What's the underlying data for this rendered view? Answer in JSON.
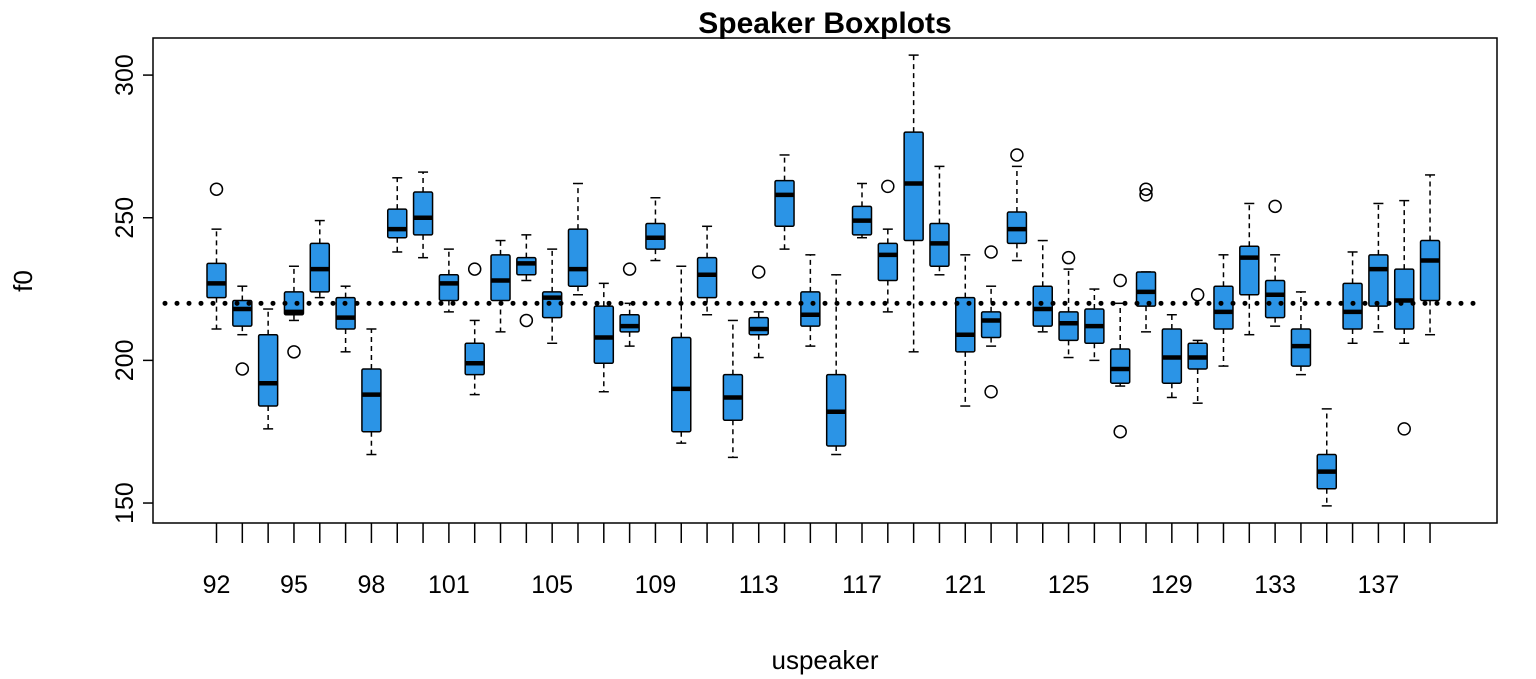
{
  "chart_data": {
    "type": "boxplot",
    "title": "Speaker Boxplots",
    "xlabel": "uspeaker",
    "ylabel": "f0",
    "ylim": [
      143,
      313
    ],
    "yticks": [
      150,
      200,
      250,
      300
    ],
    "x_tick_labels_shown": [
      "92",
      "95",
      "98",
      "101",
      "105",
      "109",
      "113",
      "117",
      "121",
      "125",
      "129",
      "133",
      "137"
    ],
    "reference_line": 220,
    "box_color": "#2b94e6",
    "categories": [
      "92",
      "93",
      "94",
      "95",
      "96",
      "97",
      "98",
      "99",
      "100",
      "101",
      "102",
      "103",
      "104",
      "105",
      "106",
      "107",
      "108",
      "109",
      "110",
      "111",
      "112",
      "113",
      "114",
      "115",
      "116",
      "117",
      "118",
      "119",
      "120",
      "121",
      "122",
      "123",
      "124",
      "125",
      "126",
      "127",
      "128",
      "129",
      "130",
      "131",
      "132",
      "133",
      "134",
      "135",
      "136",
      "137",
      "138",
      "139"
    ],
    "boxes": [
      {
        "label": "92",
        "whislo": 211,
        "q1": 222,
        "med": 227,
        "q3": 234,
        "whishi": 246,
        "fliers": [
          260
        ]
      },
      {
        "label": "93",
        "whislo": 209,
        "q1": 212,
        "med": 218,
        "q3": 221,
        "whishi": 226,
        "fliers": [
          197
        ]
      },
      {
        "label": "94",
        "whislo": 176,
        "q1": 184,
        "med": 192,
        "q3": 209,
        "whishi": 218,
        "fliers": []
      },
      {
        "label": "95",
        "whislo": 214,
        "q1": 216,
        "med": 217,
        "q3": 224,
        "whishi": 233,
        "fliers": [
          203
        ]
      },
      {
        "label": "96",
        "whislo": 222,
        "q1": 224,
        "med": 232,
        "q3": 241,
        "whishi": 249,
        "fliers": []
      },
      {
        "label": "97",
        "whislo": 203,
        "q1": 211,
        "med": 215,
        "q3": 222,
        "whishi": 226,
        "fliers": []
      },
      {
        "label": "98",
        "whislo": 167,
        "q1": 175,
        "med": 188,
        "q3": 197,
        "whishi": 211,
        "fliers": []
      },
      {
        "label": "99",
        "whislo": 238,
        "q1": 243,
        "med": 246,
        "q3": 253,
        "whishi": 264,
        "fliers": []
      },
      {
        "label": "100",
        "whislo": 236,
        "q1": 244,
        "med": 250,
        "q3": 259,
        "whishi": 266,
        "fliers": []
      },
      {
        "label": "101",
        "whislo": 217,
        "q1": 221,
        "med": 227,
        "q3": 230,
        "whishi": 239,
        "fliers": []
      },
      {
        "label": "102",
        "whislo": 188,
        "q1": 195,
        "med": 199,
        "q3": 206,
        "whishi": 214,
        "fliers": [
          232
        ]
      },
      {
        "label": "103",
        "whislo": 210,
        "q1": 221,
        "med": 228,
        "q3": 237,
        "whishi": 242,
        "fliers": []
      },
      {
        "label": "104",
        "whislo": 228,
        "q1": 230,
        "med": 234,
        "q3": 236,
        "whishi": 244,
        "fliers": [
          214
        ]
      },
      {
        "label": "105",
        "whislo": 206,
        "q1": 215,
        "med": 222,
        "q3": 224,
        "whishi": 239,
        "fliers": []
      },
      {
        "label": "106",
        "whislo": 223,
        "q1": 226,
        "med": 232,
        "q3": 246,
        "whishi": 262,
        "fliers": []
      },
      {
        "label": "107",
        "whislo": 189,
        "q1": 199,
        "med": 208,
        "q3": 219,
        "whishi": 227,
        "fliers": []
      },
      {
        "label": "108",
        "whislo": 205,
        "q1": 210,
        "med": 212,
        "q3": 216,
        "whishi": 220,
        "fliers": [
          232
        ]
      },
      {
        "label": "109",
        "whislo": 235,
        "q1": 239,
        "med": 243,
        "q3": 248,
        "whishi": 257,
        "fliers": []
      },
      {
        "label": "110",
        "whislo": 171,
        "q1": 175,
        "med": 190,
        "q3": 208,
        "whishi": 233,
        "fliers": []
      },
      {
        "label": "111",
        "whislo": 216,
        "q1": 222,
        "med": 230,
        "q3": 236,
        "whishi": 247,
        "fliers": []
      },
      {
        "label": "112",
        "whislo": 166,
        "q1": 179,
        "med": 187,
        "q3": 195,
        "whishi": 214,
        "fliers": []
      },
      {
        "label": "113",
        "whislo": 201,
        "q1": 209,
        "med": 211,
        "q3": 215,
        "whishi": 217,
        "fliers": [
          231
        ]
      },
      {
        "label": "114",
        "whislo": 239,
        "q1": 247,
        "med": 258,
        "q3": 263,
        "whishi": 272,
        "fliers": []
      },
      {
        "label": "115",
        "whislo": 205,
        "q1": 212,
        "med": 216,
        "q3": 224,
        "whishi": 237,
        "fliers": []
      },
      {
        "label": "116",
        "whislo": 167,
        "q1": 170,
        "med": 182,
        "q3": 195,
        "whishi": 230,
        "fliers": []
      },
      {
        "label": "117",
        "whislo": 243,
        "q1": 244,
        "med": 249,
        "q3": 254,
        "whishi": 262,
        "fliers": []
      },
      {
        "label": "118",
        "whislo": 217,
        "q1": 228,
        "med": 237,
        "q3": 241,
        "whishi": 246,
        "fliers": [
          261
        ]
      },
      {
        "label": "119",
        "whislo": 203,
        "q1": 242,
        "med": 262,
        "q3": 280,
        "whishi": 307,
        "fliers": []
      },
      {
        "label": "120",
        "whislo": 230,
        "q1": 233,
        "med": 241,
        "q3": 248,
        "whishi": 268,
        "fliers": []
      },
      {
        "label": "121",
        "whislo": 184,
        "q1": 203,
        "med": 209,
        "q3": 222,
        "whishi": 237,
        "fliers": []
      },
      {
        "label": "122",
        "whislo": 205,
        "q1": 208,
        "med": 214,
        "q3": 217,
        "whishi": 226,
        "fliers": [
          189,
          238
        ]
      },
      {
        "label": "123",
        "whislo": 235,
        "q1": 241,
        "med": 246,
        "q3": 252,
        "whishi": 268,
        "fliers": [
          272
        ]
      },
      {
        "label": "124",
        "whislo": 210,
        "q1": 212,
        "med": 218,
        "q3": 226,
        "whishi": 242,
        "fliers": []
      },
      {
        "label": "125",
        "whislo": 201,
        "q1": 207,
        "med": 213,
        "q3": 217,
        "whishi": 232,
        "fliers": [
          236
        ]
      },
      {
        "label": "126",
        "whislo": 200,
        "q1": 206,
        "med": 212,
        "q3": 218,
        "whishi": 225,
        "fliers": []
      },
      {
        "label": "127",
        "whislo": 191,
        "q1": 192,
        "med": 197,
        "q3": 204,
        "whishi": 220,
        "fliers": [
          175,
          228
        ]
      },
      {
        "label": "128",
        "whislo": 210,
        "q1": 219,
        "med": 224,
        "q3": 231,
        "whishi": 231,
        "fliers": [
          258,
          260
        ]
      },
      {
        "label": "129",
        "whislo": 187,
        "q1": 192,
        "med": 201,
        "q3": 211,
        "whishi": 216,
        "fliers": []
      },
      {
        "label": "130",
        "whislo": 185,
        "q1": 197,
        "med": 201,
        "q3": 206,
        "whishi": 207,
        "fliers": [
          223
        ]
      },
      {
        "label": "131",
        "whislo": 198,
        "q1": 211,
        "med": 217,
        "q3": 226,
        "whishi": 237,
        "fliers": []
      },
      {
        "label": "132",
        "whislo": 209,
        "q1": 223,
        "med": 236,
        "q3": 240,
        "whishi": 255,
        "fliers": []
      },
      {
        "label": "133",
        "whislo": 212,
        "q1": 215,
        "med": 223,
        "q3": 228,
        "whishi": 237,
        "fliers": [
          254
        ]
      },
      {
        "label": "134",
        "whislo": 195,
        "q1": 198,
        "med": 205,
        "q3": 211,
        "whishi": 224,
        "fliers": []
      },
      {
        "label": "135",
        "whislo": 149,
        "q1": 155,
        "med": 161,
        "q3": 167,
        "whishi": 183,
        "fliers": []
      },
      {
        "label": "136",
        "whislo": 206,
        "q1": 211,
        "med": 217,
        "q3": 227,
        "whishi": 238,
        "fliers": []
      },
      {
        "label": "137",
        "whislo": 210,
        "q1": 219,
        "med": 232,
        "q3": 237,
        "whishi": 255,
        "fliers": []
      },
      {
        "label": "138",
        "whislo": 206,
        "q1": 211,
        "med": 221,
        "q3": 232,
        "whishi": 256,
        "fliers": [
          176
        ]
      },
      {
        "label": "139",
        "whislo": 209,
        "q1": 221,
        "med": 235,
        "q3": 242,
        "whishi": 265,
        "fliers": []
      }
    ],
    "grid": false,
    "legend": "none"
  }
}
